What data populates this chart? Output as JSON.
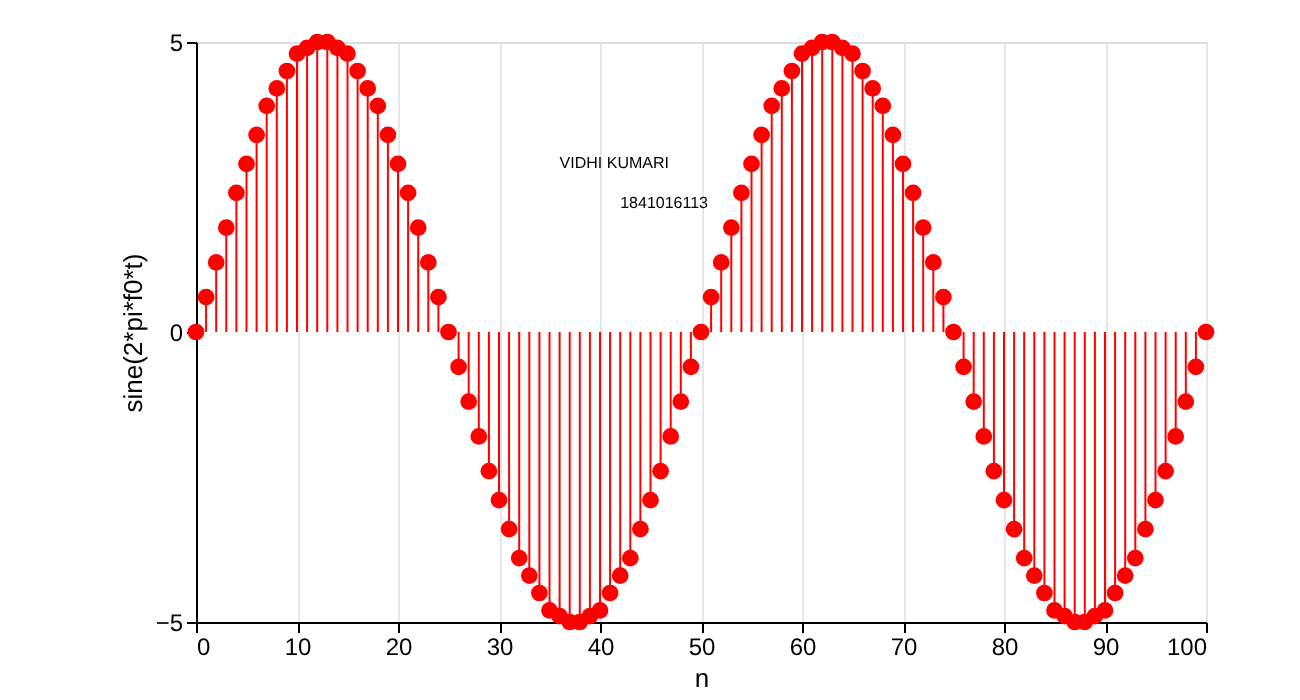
{
  "chart_data": {
    "type": "lollipop",
    "xlabel": "n",
    "ylabel": "sine(2*pi*f0*t)",
    "annotations": [
      "VIDHI KUMARI",
      "1841016113"
    ],
    "x": [
      0,
      1,
      2,
      3,
      4,
      5,
      6,
      7,
      8,
      9,
      10,
      11,
      12,
      13,
      14,
      15,
      16,
      17,
      18,
      19,
      20,
      21,
      22,
      23,
      24,
      25,
      26,
      27,
      28,
      29,
      30,
      31,
      32,
      33,
      34,
      35,
      36,
      37,
      38,
      39,
      40,
      41,
      42,
      43,
      44,
      45,
      46,
      47,
      48,
      49,
      50,
      51,
      52,
      53,
      54,
      55,
      56,
      57,
      58,
      59,
      60,
      61,
      62,
      63,
      64,
      65,
      66,
      67,
      68,
      69,
      70,
      71,
      72,
      73,
      74,
      75,
      76,
      77,
      78,
      79,
      80,
      81,
      82,
      83,
      84,
      85,
      86,
      87,
      88,
      89,
      90,
      91,
      92,
      93,
      94,
      95,
      96,
      97,
      98,
      99,
      100
    ],
    "series": [
      {
        "color": "#ff0000",
        "values": [
          0,
          0.6,
          1.2,
          1.8,
          2.4,
          2.9,
          3.4,
          3.9,
          4.2,
          4.5,
          4.8,
          4.9,
          5.0,
          5.0,
          4.9,
          4.8,
          4.5,
          4.2,
          3.9,
          3.4,
          2.9,
          2.4,
          1.8,
          1.2,
          0.6,
          0,
          -0.6,
          -1.2,
          -1.8,
          -2.4,
          -2.9,
          -3.4,
          -3.9,
          -4.2,
          -4.5,
          -4.8,
          -4.9,
          -5.0,
          -5.0,
          -4.9,
          -4.8,
          -4.5,
          -4.2,
          -3.9,
          -3.4,
          -2.9,
          -2.4,
          -1.8,
          -1.2,
          -0.6,
          0,
          0.6,
          1.2,
          1.8,
          2.4,
          2.9,
          3.4,
          3.9,
          4.2,
          4.5,
          4.8,
          4.9,
          5.0,
          5.0,
          4.9,
          4.8,
          4.5,
          4.2,
          3.9,
          3.4,
          2.9,
          2.4,
          1.8,
          1.2,
          0.6,
          0,
          -0.6,
          -1.2,
          -1.8,
          -2.4,
          -2.9,
          -3.4,
          -3.9,
          -4.2,
          -4.5,
          -4.8,
          -4.9,
          -5.0,
          -5.0,
          -4.9,
          -4.8,
          -4.5,
          -4.2,
          -3.9,
          -3.4,
          -2.9,
          -2.4,
          -1.8,
          -1.2,
          -0.6,
          0
        ]
      }
    ],
    "xlim": [
      0,
      100
    ],
    "xticks": [
      0,
      10,
      20,
      30,
      40,
      50,
      60,
      70,
      80,
      90,
      100
    ],
    "ylim": [
      -5,
      5
    ],
    "yticks": [
      -5,
      0,
      5
    ],
    "grid": "x",
    "marker": "circle"
  }
}
